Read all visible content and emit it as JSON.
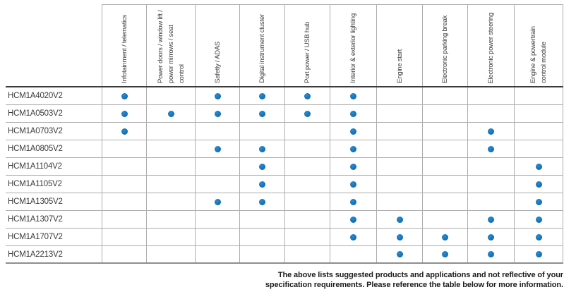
{
  "matrix": {
    "columns": [
      {
        "label": "Infotainment / telematics"
      },
      {
        "label": "Power doors / window lift / power mirrows / seat control"
      },
      {
        "label": "Safetly / ADAS"
      },
      {
        "label": "Digital instrument cluster"
      },
      {
        "label": "Port power / USB hub"
      },
      {
        "label": "Interior & exterior lighting"
      },
      {
        "label": "Engine start"
      },
      {
        "label": "Electronic parking break"
      },
      {
        "label": "Electronic power steering"
      },
      {
        "label": "Engine & powertrain control module"
      }
    ],
    "rows": [
      {
        "part": "HCM1A4020V2",
        "dots": [
          1,
          0,
          1,
          1,
          1,
          1,
          0,
          0,
          0,
          0
        ]
      },
      {
        "part": "HCM1A0503V2",
        "dots": [
          1,
          1,
          1,
          1,
          1,
          1,
          0,
          0,
          0,
          0
        ]
      },
      {
        "part": "HCM1A0703V2",
        "dots": [
          1,
          0,
          0,
          0,
          0,
          1,
          0,
          0,
          1,
          0
        ]
      },
      {
        "part": "HCM1A0805V2",
        "dots": [
          0,
          0,
          1,
          1,
          0,
          1,
          0,
          0,
          1,
          0
        ]
      },
      {
        "part": "HCM1A1104V2",
        "dots": [
          0,
          0,
          0,
          1,
          0,
          1,
          0,
          0,
          0,
          1
        ]
      },
      {
        "part": "HCM1A1105V2",
        "dots": [
          0,
          0,
          0,
          1,
          0,
          1,
          0,
          0,
          0,
          1
        ]
      },
      {
        "part": "HCM1A1305V2",
        "dots": [
          0,
          0,
          1,
          1,
          0,
          1,
          0,
          0,
          0,
          1
        ]
      },
      {
        "part": "HCM1A1307V2",
        "dots": [
          0,
          0,
          0,
          0,
          0,
          1,
          1,
          0,
          1,
          1
        ]
      },
      {
        "part": "HCM1A1707V2",
        "dots": [
          0,
          0,
          0,
          0,
          0,
          1,
          1,
          1,
          1,
          1
        ]
      },
      {
        "part": "HCM1A2213V2",
        "dots": [
          0,
          0,
          0,
          0,
          0,
          0,
          1,
          1,
          1,
          1
        ]
      }
    ]
  },
  "colors": {
    "dot": "#1173BB"
  },
  "footer": {
    "line1": "The above lists suggested products and applications and not reflective of your",
    "line2": "specification requirements. Please reference the table below for more information."
  }
}
